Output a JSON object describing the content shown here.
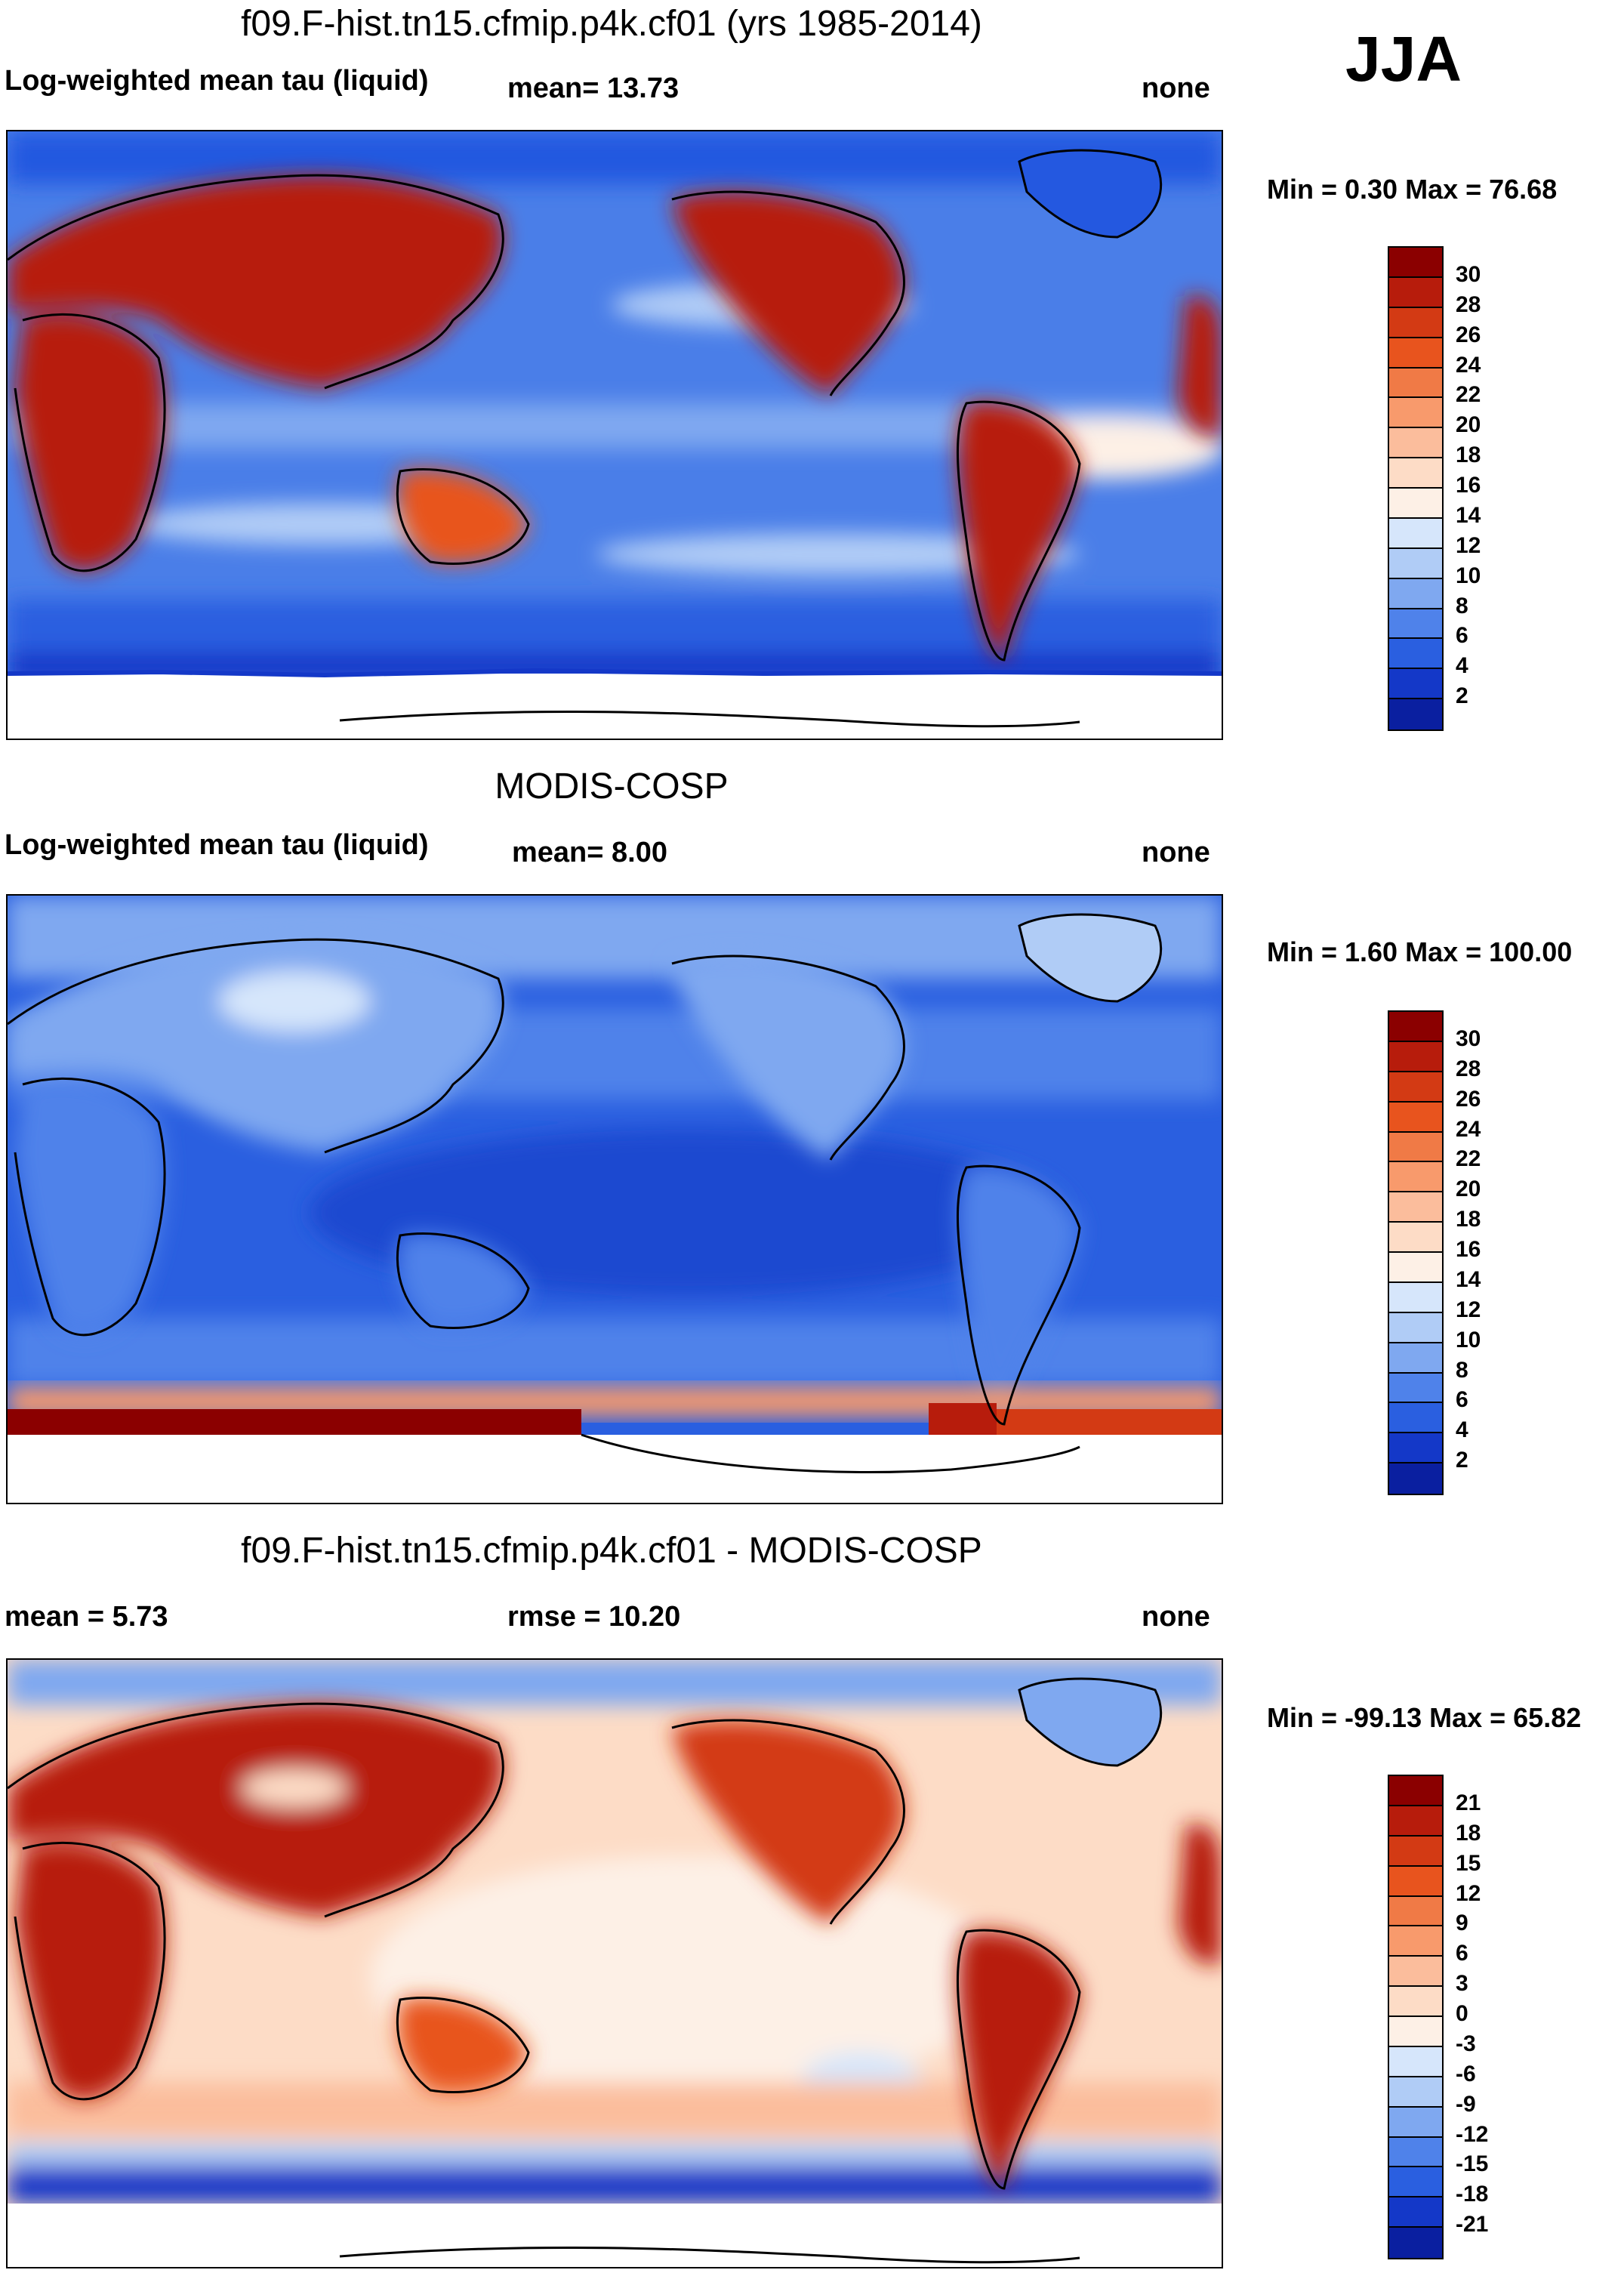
{
  "season": "JJA",
  "panels": [
    {
      "id": "model",
      "title": "f09.F-hist.tn15.cfmip.p4k.cf01 (yrs 1985-2014)",
      "left_label": "Log-weighted mean tau (liquid)",
      "mid_label": "mean=  13.73",
      "right_label": "none",
      "minmax": "Min =   0.30 Max =  76.68",
      "colorbar": {
        "ticks": [
          "30",
          "28",
          "26",
          "24",
          "22",
          "20",
          "18",
          "16",
          "14",
          "12",
          "10",
          "8",
          "6",
          "4",
          "2"
        ],
        "colors": [
          "#8b0000",
          "#b71c0c",
          "#d33a14",
          "#e8541e",
          "#f07a46",
          "#f89a6c",
          "#fbbd9c",
          "#fddcc6",
          "#fdf0e6",
          "#d6e6fb",
          "#b0ccf6",
          "#7fa8f0",
          "#4f82ea",
          "#2a5fe0",
          "#1438c8",
          "#0a1fa0"
        ]
      }
    },
    {
      "id": "obs",
      "title": "MODIS-COSP",
      "left_label": "Log-weighted mean tau (liquid)",
      "mid_label": "mean=   8.00",
      "right_label": "none",
      "minmax": "Min =   1.60 Max = 100.00",
      "colorbar": {
        "ticks": [
          "30",
          "28",
          "26",
          "24",
          "22",
          "20",
          "18",
          "16",
          "14",
          "12",
          "10",
          "8",
          "6",
          "4",
          "2"
        ],
        "colors": [
          "#8b0000",
          "#b71c0c",
          "#d33a14",
          "#e8541e",
          "#f07a46",
          "#f89a6c",
          "#fbbd9c",
          "#fddcc6",
          "#fdf0e6",
          "#d6e6fb",
          "#b0ccf6",
          "#7fa8f0",
          "#4f82ea",
          "#2a5fe0",
          "#1438c8",
          "#0a1fa0"
        ]
      }
    },
    {
      "id": "diff",
      "title": "f09.F-hist.tn15.cfmip.p4k.cf01 - MODIS-COSP",
      "left_label": "mean =   5.73",
      "mid_label": "rmse =  10.20",
      "right_label": "none",
      "minmax": "Min = -99.13 Max =  65.82",
      "colorbar": {
        "ticks": [
          "21",
          "18",
          "15",
          "12",
          "9",
          "6",
          "3",
          "0",
          "-3",
          "-6",
          "-9",
          "-12",
          "-15",
          "-18",
          "-21"
        ],
        "colors": [
          "#8b0000",
          "#b71c0c",
          "#d33a14",
          "#e8541e",
          "#f07a46",
          "#f89a6c",
          "#fbbd9c",
          "#fddcc6",
          "#fdf0e6",
          "#d6e6fb",
          "#b0ccf6",
          "#7fa8f0",
          "#4f82ea",
          "#2a5fe0",
          "#1438c8",
          "#0a1fa0"
        ]
      }
    }
  ]
}
